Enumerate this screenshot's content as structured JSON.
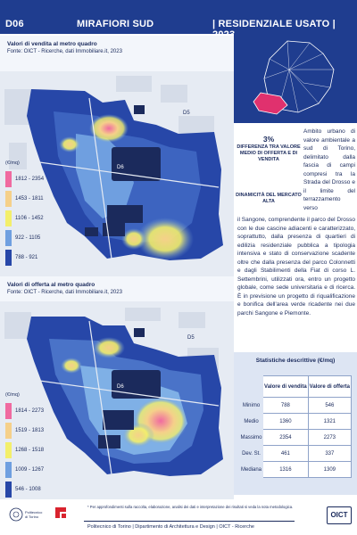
{
  "header": {
    "code": "D06",
    "area": "MIRAFIORI SUD",
    "type": "| RESIDENZIALE USATO | 2023"
  },
  "maps": [
    {
      "title": "Valori di vendita al metro quadro",
      "source": "Fonte: OICT - Ricerche, dati Immobiliare.it, 2023",
      "unit": "(€/mq)",
      "legend": [
        {
          "label": "1812 - 2354",
          "color": "#f06aa0"
        },
        {
          "label": "1453 - 1811",
          "color": "#f5d08a"
        },
        {
          "label": "1106 - 1452",
          "color": "#f3ef6b"
        },
        {
          "label": "922 - 1105",
          "color": "#6f9fe0"
        },
        {
          "label": "788 - 921",
          "color": "#2747a8"
        }
      ],
      "district_labels": [
        "D5",
        "D6"
      ]
    },
    {
      "title": "Valori di offerta al metro quadro",
      "source": "Fonte: OICT - Ricerche, dati Immobiliare.it, 2023",
      "unit": "(€/mq)",
      "legend": [
        {
          "label": "1814 - 2273",
          "color": "#f06aa0"
        },
        {
          "label": "1519 - 1813",
          "color": "#f5d08a"
        },
        {
          "label": "1268 - 1518",
          "color": "#f3ef6b"
        },
        {
          "label": "1009 - 1267",
          "color": "#6f9fe0"
        },
        {
          "label": "546 - 1008",
          "color": "#2747a8"
        }
      ],
      "district_labels": [
        "D5",
        "D6"
      ]
    }
  ],
  "summary": {
    "pct": "3%",
    "pct_desc": "DIFFERENZA TRA VALORE MEDIO DI OFFERTA E DI VENDITA",
    "dynamism": "DINAMICITÀ DEL MERCATO ALTA"
  },
  "description": {
    "part1": "Ambito urbano di valore ambientale a sud di Torino, delimitato dalla fascia di campi compresi tra la Strada del Drosso e il limite del terrazzamento verso",
    "part2": "il Sangone, comprendente il parco del Drosso con le due cascine adiacenti e caratterizzato, soprattutto, dalla presenza di quartieri di edilizia residenziale pubblica a tipologia intensiva e stato di conservazione scadente oltre che dalla presenza del parco Colonnetti e dagli Stabilimenti della Fiat di corso L. Settembrini, utilizzati ora, entro un progetto globale, come sede universitaria e di ricerca. È in previsione un progetto di riqualificazione e bonifica dell'area verde ricadente nei due parchi Sangone e Piemonte."
  },
  "stats": {
    "title": "Statistiche descrittive (€/mq)",
    "headers": [
      "",
      "Valore di vendita",
      "Valore di offerta"
    ],
    "rows": [
      {
        "label": "Minimo",
        "vendita": "788",
        "offerta": "546"
      },
      {
        "label": "Medio",
        "vendita": "1360",
        "offerta": "1321"
      },
      {
        "label": "Massimo",
        "vendita": "2354",
        "offerta": "2273"
      },
      {
        "label": "Dev. St.",
        "vendita": "461",
        "offerta": "337"
      },
      {
        "label": "Mediana",
        "vendita": "1316",
        "offerta": "1309"
      }
    ]
  },
  "footer": {
    "note": "* Per approfondimenti sulla raccolta, elaborazione, analisi dei dati e interpretazione dei risultati si veda la nota metodologica.",
    "credits": "Politecnico di Torino | Dipartimento di Architettura e Design | OICT - Ricerche",
    "logo_polito": "Politecnico di Torino",
    "logo_oict": "OICT"
  },
  "colors": {
    "header_bg": "#1f3d8f",
    "text": "#1a2a5c",
    "highlight_district": "#e0316e"
  }
}
